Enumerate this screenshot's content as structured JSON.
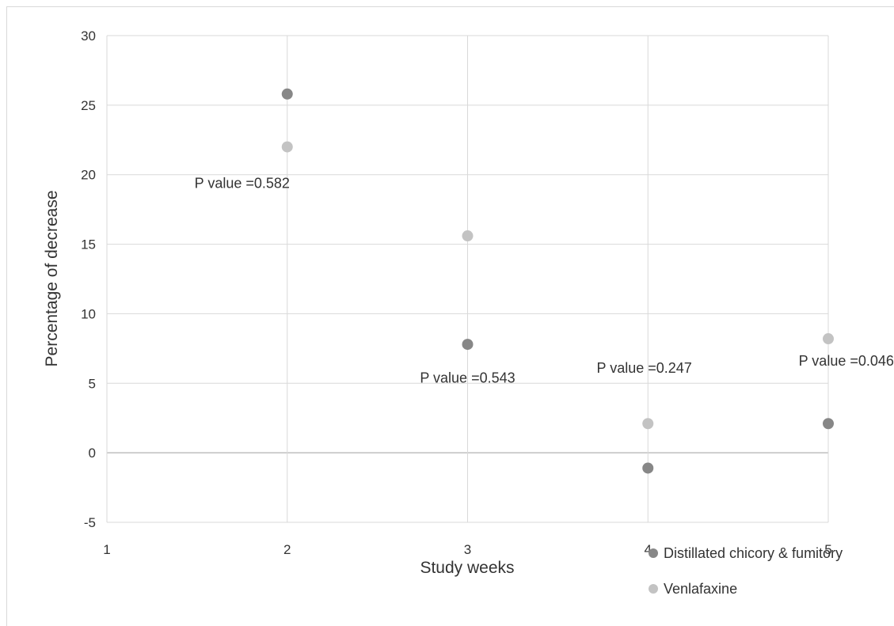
{
  "chart_data": {
    "type": "scatter",
    "title": "",
    "xlabel": "Study weeks",
    "ylabel": "Percentage of decrease",
    "xlim": [
      1,
      5
    ],
    "ylim": [
      -5,
      30
    ],
    "x_ticks": [
      1,
      2,
      3,
      4,
      5
    ],
    "y_ticks": [
      -5,
      0,
      5,
      10,
      15,
      20,
      25,
      30
    ],
    "grid": true,
    "legend_position": "bottom-right",
    "series": [
      {
        "name": "Distillated chicory & fumitory",
        "color": "#878787",
        "x": [
          2,
          3,
          4,
          5
        ],
        "y": [
          25.8,
          7.8,
          -1.1,
          2.1
        ]
      },
      {
        "name": "Venlafaxine",
        "color": "#c3c3c3",
        "x": [
          2,
          3,
          4,
          5
        ],
        "y": [
          22.0,
          15.6,
          2.1,
          8.2
        ]
      }
    ],
    "annotations": [
      {
        "text": "P value =0.582",
        "x": 1.75,
        "y": 19.4
      },
      {
        "text": "P value =0.543",
        "x": 3.0,
        "y": 5.4
      },
      {
        "text": "P value =0.247",
        "x": 3.98,
        "y": 6.1
      },
      {
        "text": "P value =0.046",
        "x": 5.1,
        "y": 6.6
      }
    ]
  }
}
